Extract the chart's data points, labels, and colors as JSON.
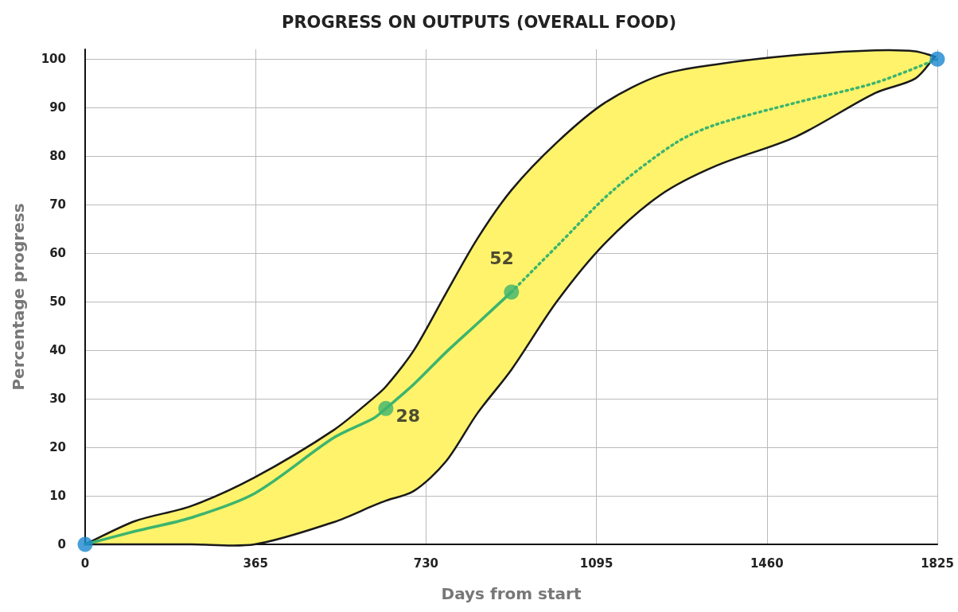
{
  "chart_data": {
    "type": "line",
    "title": "PROGRESS ON OUTPUTS (OVERALL FOOD)",
    "xlabel": "Days from start",
    "ylabel": "Percentage progress",
    "xlim": [
      0,
      1825
    ],
    "xticks": [
      0,
      365,
      730,
      1095,
      1460,
      1825
    ],
    "ylim": [
      0,
      102
    ],
    "yticks": [
      0,
      10,
      20,
      30,
      40,
      50,
      60,
      70,
      80,
      90,
      100
    ],
    "grid": true,
    "series": [
      {
        "color": "#3cb46e",
        "marker": "none",
        "line_style": "solid",
        "x": [
          0,
          107,
          227,
          363,
          533,
          618,
          644,
          704,
          772,
          840,
          913,
          1010,
          1113,
          1232,
          1351,
          1522,
          1692,
          1778,
          1820
        ],
        "values": [
          0,
          2.7,
          5.5,
          10.5,
          22,
          26,
          28,
          33,
          39.5,
          45.5,
          52,
          null,
          null,
          null,
          null,
          null,
          null,
          null,
          null
        ],
        "lower": [
          0,
          0,
          0,
          0,
          4.6,
          8,
          9,
          11,
          17,
          27,
          36,
          50,
          62,
          72,
          78,
          84,
          93,
          96,
          100.5
        ],
        "upper": [
          0,
          4.8,
          7.9,
          13.8,
          23.6,
          30.2,
          32.5,
          40,
          51.6,
          63,
          73,
          82.8,
          91,
          96.7,
          98.9,
          100.8,
          101.8,
          101.6,
          100.5
        ]
      },
      {
        "color": "#3cb46e",
        "marker": "none",
        "line_style": "dotted",
        "x": [
          913,
          1010,
          1130,
          1266,
          1351,
          1522,
          1692,
          1825
        ],
        "values": [
          52,
          61.4,
          72.9,
          82.8,
          86.5,
          91,
          95.1,
          100
        ]
      },
      {
        "type": "scatter",
        "color": "#3cb46e",
        "marker": "circle",
        "x": [
          644,
          913
        ],
        "values": [
          28,
          52
        ],
        "value_labels": [
          "28",
          "52"
        ]
      },
      {
        "type": "scatter",
        "color": "#1a87d0",
        "marker": "circle",
        "x": [
          0,
          1825
        ],
        "values": [
          0,
          100
        ]
      }
    ]
  }
}
